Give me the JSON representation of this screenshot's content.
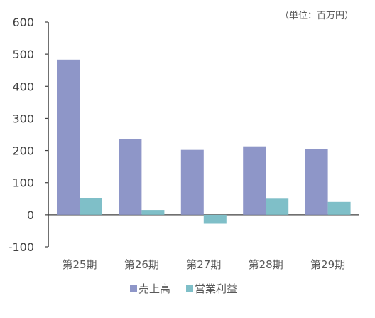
{
  "chart_data": {
    "type": "bar",
    "unit_note": "（単位：百万円）",
    "categories": [
      "第25期",
      "第26期",
      "第27期",
      "第28期",
      "第29期"
    ],
    "series": [
      {
        "name": "売上高",
        "values": [
          483,
          235,
          202,
          213,
          204
        ],
        "color": "#8E96C8"
      },
      {
        "name": "営業利益",
        "values": [
          52,
          15,
          -28,
          50,
          40
        ],
        "color": "#7FBFC8"
      }
    ],
    "ylim": [
      -100,
      600
    ],
    "yticks": [
      600,
      500,
      400,
      300,
      200,
      100,
      0,
      -100
    ],
    "grid": false,
    "legend_position": "bottom"
  }
}
